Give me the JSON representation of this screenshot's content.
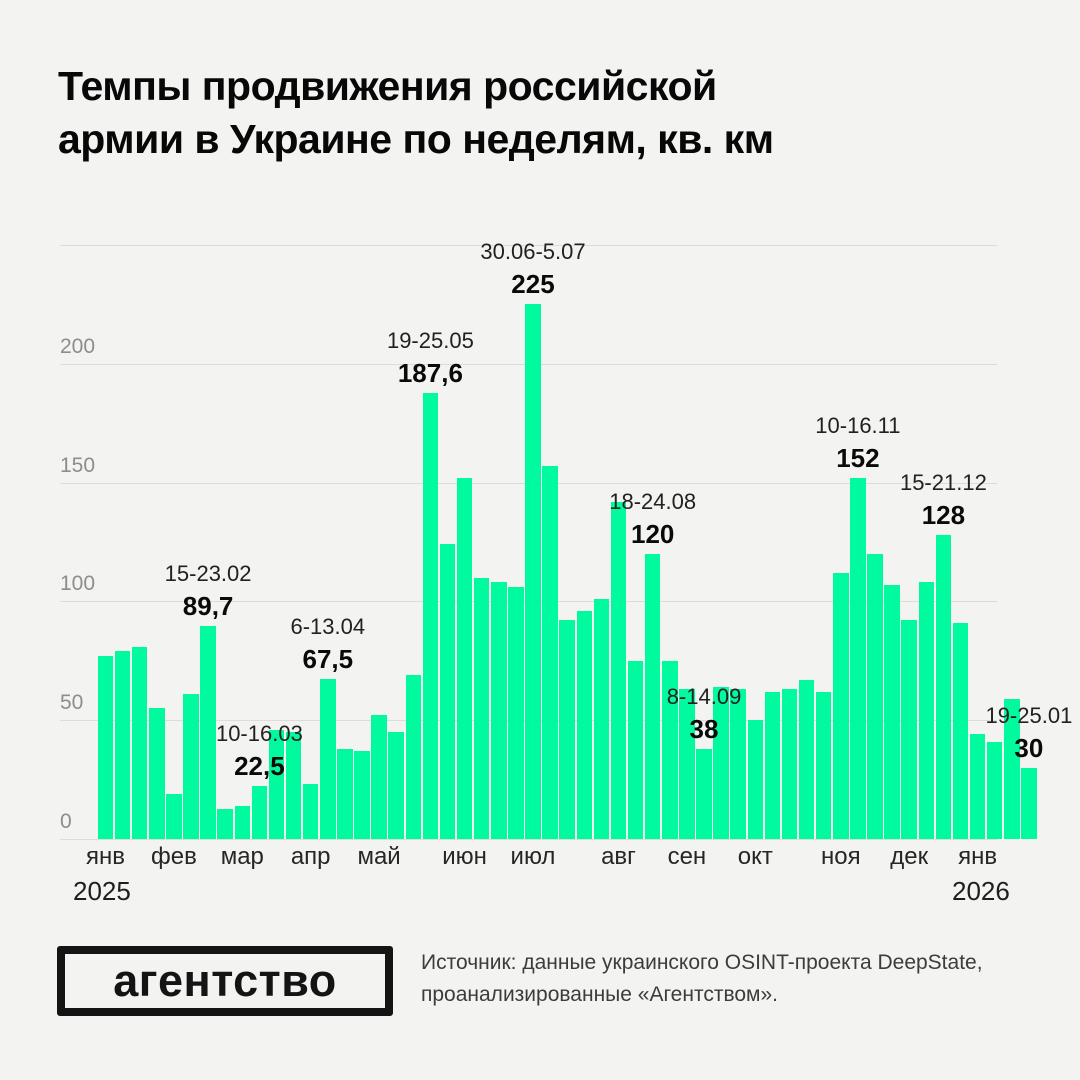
{
  "header": {
    "title_line1": "Темпы продвижения российской",
    "title_line2": "армии в Украине по неделям, кв. км"
  },
  "chart_data": {
    "type": "bar",
    "title": "Темпы продвижения российской армии в Украине по неделям, кв. км",
    "unit": "кв. км",
    "ylim": [
      0,
      250
    ],
    "y_ticks": [
      0,
      50,
      100,
      150,
      200
    ],
    "grid": true,
    "values": [
      77,
      79,
      81,
      55,
      19,
      61,
      89.7,
      12.5,
      14,
      22.5,
      46,
      45,
      23,
      67.5,
      38,
      37,
      52,
      45,
      69,
      187.6,
      124,
      152,
      110,
      108,
      106,
      225,
      157,
      92,
      96,
      101,
      142,
      75,
      120,
      75,
      63,
      38,
      64,
      63,
      50,
      62,
      63,
      67,
      62,
      112,
      152,
      120,
      107,
      92,
      108,
      128,
      91,
      44,
      41,
      59,
      30
    ],
    "x_month_labels": [
      {
        "label": "янв",
        "bar_index": 0
      },
      {
        "label": "фев",
        "bar_index": 4
      },
      {
        "label": "мар",
        "bar_index": 8
      },
      {
        "label": "апр",
        "bar_index": 12
      },
      {
        "label": "май",
        "bar_index": 16
      },
      {
        "label": "июн",
        "bar_index": 21
      },
      {
        "label": "июл",
        "bar_index": 25
      },
      {
        "label": "авг",
        "bar_index": 30
      },
      {
        "label": "сен",
        "bar_index": 34
      },
      {
        "label": "окт",
        "bar_index": 38
      },
      {
        "label": "ноя",
        "bar_index": 43
      },
      {
        "label": "дек",
        "bar_index": 47
      },
      {
        "label": "янв",
        "bar_index": 51
      }
    ],
    "years": [
      "2025",
      "2026"
    ],
    "annotations": [
      {
        "bar_index": 6,
        "date": "15-23.02",
        "value": "89,7"
      },
      {
        "bar_index": 9,
        "date": "10-16.03",
        "value": "22,5"
      },
      {
        "bar_index": 13,
        "date": "6-13.04",
        "value": "67,5"
      },
      {
        "bar_index": 19,
        "date": "19-25.05",
        "value": "187,6"
      },
      {
        "bar_index": 25,
        "date": "30.06-5.07",
        "value": "225"
      },
      {
        "bar_index": 32,
        "date": "18-24.08",
        "value": "120"
      },
      {
        "bar_index": 35,
        "date": "8-14.09",
        "value": "38"
      },
      {
        "bar_index": 44,
        "date": "10-16.11",
        "value": "152"
      },
      {
        "bar_index": 49,
        "date": "15-21.12",
        "value": "128"
      },
      {
        "bar_index": 54,
        "date": "19-25.01",
        "value": "30"
      }
    ],
    "colors": {
      "bar": "#00fa9d",
      "grid": "#dcdcda",
      "tick_label": "#8d8d8d",
      "background": "#f3f3f1",
      "title": "#080808",
      "annotation_date": "#212121",
      "annotation_value": "#0a0a0a"
    },
    "legend": null
  },
  "footer": {
    "logo_text": "агентство",
    "source_line1": "Источник: данные украинского OSINT-проекта DeepState,",
    "source_line2": "проанализированные «Агентством»."
  }
}
